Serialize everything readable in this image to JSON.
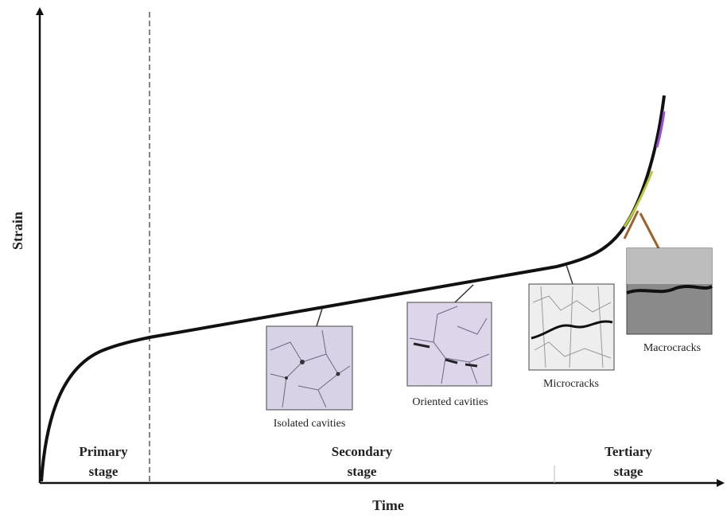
{
  "axes": {
    "x_label": "Time",
    "y_label": "Strain"
  },
  "stages": [
    {
      "lines": [
        "Primary",
        "stage"
      ]
    },
    {
      "lines": [
        "Secondary",
        "stage"
      ]
    },
    {
      "lines": [
        "Tertiary",
        "stage"
      ]
    }
  ],
  "micrographs": [
    {
      "caption": "Isolated cavities"
    },
    {
      "caption": "Oriented cavities"
    },
    {
      "caption": "Microcracks"
    },
    {
      "caption": "Macrocracks"
    }
  ]
}
